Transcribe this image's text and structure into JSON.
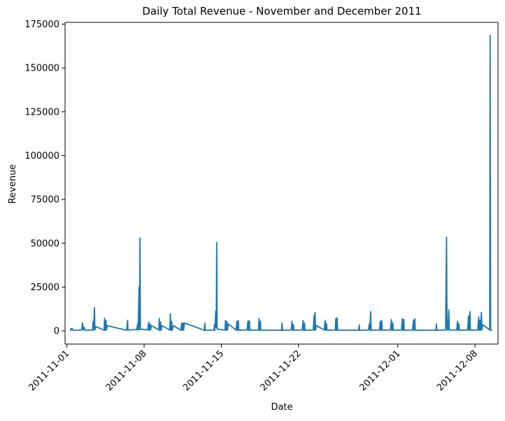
{
  "chart_data": {
    "type": "line",
    "title": "Daily Total Revenue - November and December 2011",
    "xlabel": "Date",
    "ylabel": "Revenue",
    "x_range": [
      "2011-10-31T20:00",
      "2011-12-10T02:00"
    ],
    "ylim": [
      -7500,
      176000
    ],
    "x_ticks": [
      "2011-11-01",
      "2011-11-08",
      "2011-11-15",
      "2011-11-22",
      "2011-12-01",
      "2011-12-08"
    ],
    "y_ticks": [
      0,
      25000,
      50000,
      75000,
      100000,
      125000,
      150000,
      175000
    ],
    "grid": false,
    "legend": "none",
    "series": [
      {
        "color": "#1f77b4",
        "points": [
          [
            "2011-11-01T08:00",
            1200
          ],
          [
            "2011-11-01T09:00",
            200
          ],
          [
            "2011-11-01T11:00",
            1500
          ],
          [
            "2011-11-01T13:00",
            300
          ],
          [
            "2011-11-02T08:00",
            500
          ],
          [
            "2011-11-02T10:00",
            4500
          ],
          [
            "2011-11-02T12:00",
            300
          ],
          [
            "2011-11-02T14:00",
            2000
          ],
          [
            "2011-11-02T16:00",
            300
          ],
          [
            "2011-11-03T08:00",
            600
          ],
          [
            "2011-11-03T09:00",
            5500
          ],
          [
            "2011-11-03T10:00",
            400
          ],
          [
            "2011-11-03T12:00",
            13300
          ],
          [
            "2011-11-03T13:00",
            500
          ],
          [
            "2011-11-03T15:00",
            2500
          ],
          [
            "2011-11-04T09:00",
            400
          ],
          [
            "2011-11-04T10:00",
            7200
          ],
          [
            "2011-11-04T11:00",
            300
          ],
          [
            "2011-11-04T13:00",
            6000
          ],
          [
            "2011-11-04T14:00",
            500
          ],
          [
            "2011-11-04T16:00",
            3000
          ],
          [
            "2011-11-06T10:00",
            400
          ],
          [
            "2011-11-06T12:00",
            6000
          ],
          [
            "2011-11-06T13:00",
            500
          ],
          [
            "2011-11-07T08:00",
            800
          ],
          [
            "2011-11-07T10:00",
            4000
          ],
          [
            "2011-11-07T11:00",
            300
          ],
          [
            "2011-11-07T13:00",
            25000
          ],
          [
            "2011-11-07T14:00",
            800
          ],
          [
            "2011-11-07T15:00",
            53000
          ],
          [
            "2011-11-07T16:00",
            1000
          ],
          [
            "2011-11-08T08:00",
            600
          ],
          [
            "2011-11-08T10:00",
            5000
          ],
          [
            "2011-11-08T11:00",
            300
          ],
          [
            "2011-11-08T13:00",
            4000
          ],
          [
            "2011-11-08T14:00",
            500
          ],
          [
            "2011-11-08T16:00",
            3000
          ],
          [
            "2011-11-09T08:00",
            500
          ],
          [
            "2011-11-09T09:00",
            7000
          ],
          [
            "2011-11-09T10:00",
            300
          ],
          [
            "2011-11-09T12:00",
            5000
          ],
          [
            "2011-11-09T13:00",
            400
          ],
          [
            "2011-11-09T15:00",
            3000
          ],
          [
            "2011-11-10T08:00",
            500
          ],
          [
            "2011-11-10T09:00",
            9800
          ],
          [
            "2011-11-10T10:00",
            400
          ],
          [
            "2011-11-10T12:00",
            5500
          ],
          [
            "2011-11-10T13:00",
            300
          ],
          [
            "2011-11-10T16:00",
            3000
          ],
          [
            "2011-11-11T08:00",
            400
          ],
          [
            "2011-11-11T10:00",
            4500
          ],
          [
            "2011-11-11T11:00",
            300
          ],
          [
            "2011-11-11T13:00",
            4500
          ],
          [
            "2011-11-11T14:00",
            400
          ],
          [
            "2011-11-11T16:00",
            4500
          ],
          [
            "2011-11-13T11:00",
            400
          ],
          [
            "2011-11-13T12:00",
            4500
          ],
          [
            "2011-11-13T13:00",
            300
          ],
          [
            "2011-11-14T08:00",
            500
          ],
          [
            "2011-11-14T09:00",
            3500
          ],
          [
            "2011-11-14T10:00",
            300
          ],
          [
            "2011-11-14T12:00",
            11500
          ],
          [
            "2011-11-14T13:00",
            2000
          ],
          [
            "2011-11-14T14:00",
            50500
          ],
          [
            "2011-11-14T15:00",
            1000
          ],
          [
            "2011-11-15T08:00",
            500
          ],
          [
            "2011-11-15T09:00",
            6000
          ],
          [
            "2011-11-15T10:00",
            300
          ],
          [
            "2011-11-15T12:00",
            5500
          ],
          [
            "2011-11-15T13:00",
            400
          ],
          [
            "2011-11-15T15:00",
            4000
          ],
          [
            "2011-11-16T08:00",
            500
          ],
          [
            "2011-11-16T10:00",
            5500
          ],
          [
            "2011-11-16T11:00",
            300
          ],
          [
            "2011-11-16T13:00",
            6000
          ],
          [
            "2011-11-16T14:00",
            400
          ],
          [
            "2011-11-17T08:00",
            500
          ],
          [
            "2011-11-17T10:00",
            5500
          ],
          [
            "2011-11-17T11:00",
            300
          ],
          [
            "2011-11-17T13:00",
            6000
          ],
          [
            "2011-11-17T14:00",
            400
          ],
          [
            "2011-11-18T09:00",
            500
          ],
          [
            "2011-11-18T10:00",
            7000
          ],
          [
            "2011-11-18T11:00",
            300
          ],
          [
            "2011-11-18T13:00",
            5500
          ],
          [
            "2011-11-18T14:00",
            400
          ],
          [
            "2011-11-20T11:00",
            400
          ],
          [
            "2011-11-20T12:00",
            4500
          ],
          [
            "2011-11-20T13:00",
            300
          ],
          [
            "2011-11-21T08:00",
            500
          ],
          [
            "2011-11-21T10:00",
            5500
          ],
          [
            "2011-11-21T11:00",
            300
          ],
          [
            "2011-11-21T13:00",
            3500
          ],
          [
            "2011-11-21T14:00",
            400
          ],
          [
            "2011-11-22T08:00",
            500
          ],
          [
            "2011-11-22T10:00",
            6000
          ],
          [
            "2011-11-22T11:00",
            300
          ],
          [
            "2011-11-22T13:00",
            4500
          ],
          [
            "2011-11-22T14:00",
            400
          ],
          [
            "2011-11-23T08:00",
            500
          ],
          [
            "2011-11-23T10:00",
            9000
          ],
          [
            "2011-11-23T11:00",
            500
          ],
          [
            "2011-11-23T12:00",
            10500
          ],
          [
            "2011-11-23T13:00",
            400
          ],
          [
            "2011-11-23T15:00",
            3000
          ],
          [
            "2011-11-24T08:00",
            500
          ],
          [
            "2011-11-24T10:00",
            6000
          ],
          [
            "2011-11-24T11:00",
            300
          ],
          [
            "2011-11-24T13:00",
            4000
          ],
          [
            "2011-11-24T14:00",
            400
          ],
          [
            "2011-11-25T08:00",
            500
          ],
          [
            "2011-11-25T09:00",
            7000
          ],
          [
            "2011-11-25T10:00",
            300
          ],
          [
            "2011-11-25T12:00",
            7500
          ],
          [
            "2011-11-25T13:00",
            400
          ],
          [
            "2011-11-27T11:00",
            400
          ],
          [
            "2011-11-27T12:00",
            3500
          ],
          [
            "2011-11-27T13:00",
            300
          ],
          [
            "2011-11-28T08:00",
            500
          ],
          [
            "2011-11-28T10:00",
            4000
          ],
          [
            "2011-11-28T11:00",
            300
          ],
          [
            "2011-11-28T13:00",
            11000
          ],
          [
            "2011-11-28T14:00",
            400
          ],
          [
            "2011-11-29T08:00",
            500
          ],
          [
            "2011-11-29T10:00",
            5500
          ],
          [
            "2011-11-29T11:00",
            300
          ],
          [
            "2011-11-29T13:00",
            6000
          ],
          [
            "2011-11-29T14:00",
            400
          ],
          [
            "2011-11-30T08:00",
            500
          ],
          [
            "2011-11-30T10:00",
            6500
          ],
          [
            "2011-11-30T11:00",
            300
          ],
          [
            "2011-11-30T13:00",
            4500
          ],
          [
            "2011-11-30T14:00",
            400
          ],
          [
            "2011-12-01T08:00",
            500
          ],
          [
            "2011-12-01T10:00",
            7000
          ],
          [
            "2011-12-01T11:00",
            300
          ],
          [
            "2011-12-01T13:00",
            6500
          ],
          [
            "2011-12-01T14:00",
            400
          ],
          [
            "2011-12-02T08:00",
            500
          ],
          [
            "2011-12-02T10:00",
            6000
          ],
          [
            "2011-12-02T11:00",
            300
          ],
          [
            "2011-12-02T13:00",
            7000
          ],
          [
            "2011-12-02T14:00",
            400
          ],
          [
            "2011-12-04T11:00",
            400
          ],
          [
            "2011-12-04T12:00",
            4000
          ],
          [
            "2011-12-04T13:00",
            300
          ],
          [
            "2011-12-05T08:00",
            500
          ],
          [
            "2011-12-05T10:00",
            53500
          ],
          [
            "2011-12-05T11:00",
            600
          ],
          [
            "2011-12-05T12:00",
            5500
          ],
          [
            "2011-12-05T13:00",
            500
          ],
          [
            "2011-12-05T15:00",
            12000
          ],
          [
            "2011-12-05T16:00",
            500
          ],
          [
            "2011-12-06T08:00",
            500
          ],
          [
            "2011-12-06T10:00",
            5500
          ],
          [
            "2011-12-06T11:00",
            300
          ],
          [
            "2011-12-06T13:00",
            4000
          ],
          [
            "2011-12-06T14:00",
            400
          ],
          [
            "2011-12-07T08:00",
            500
          ],
          [
            "2011-12-07T10:00",
            8500
          ],
          [
            "2011-12-07T11:00",
            300
          ],
          [
            "2011-12-07T13:00",
            11000
          ],
          [
            "2011-12-07T14:00",
            400
          ],
          [
            "2011-12-08T06:00",
            500
          ],
          [
            "2011-12-08T08:00",
            8000
          ],
          [
            "2011-12-08T09:00",
            300
          ],
          [
            "2011-12-08T11:00",
            6000
          ],
          [
            "2011-12-08T12:00",
            400
          ],
          [
            "2011-12-08T14:00",
            10500
          ],
          [
            "2011-12-08T15:00",
            500
          ],
          [
            "2011-12-08T17:00",
            3500
          ],
          [
            "2011-12-09T08:00",
            500
          ],
          [
            "2011-12-09T09:00",
            168500
          ],
          [
            "2011-12-09T10:00",
            300
          ],
          [
            "2011-12-09T12:00",
            400
          ]
        ]
      }
    ]
  }
}
